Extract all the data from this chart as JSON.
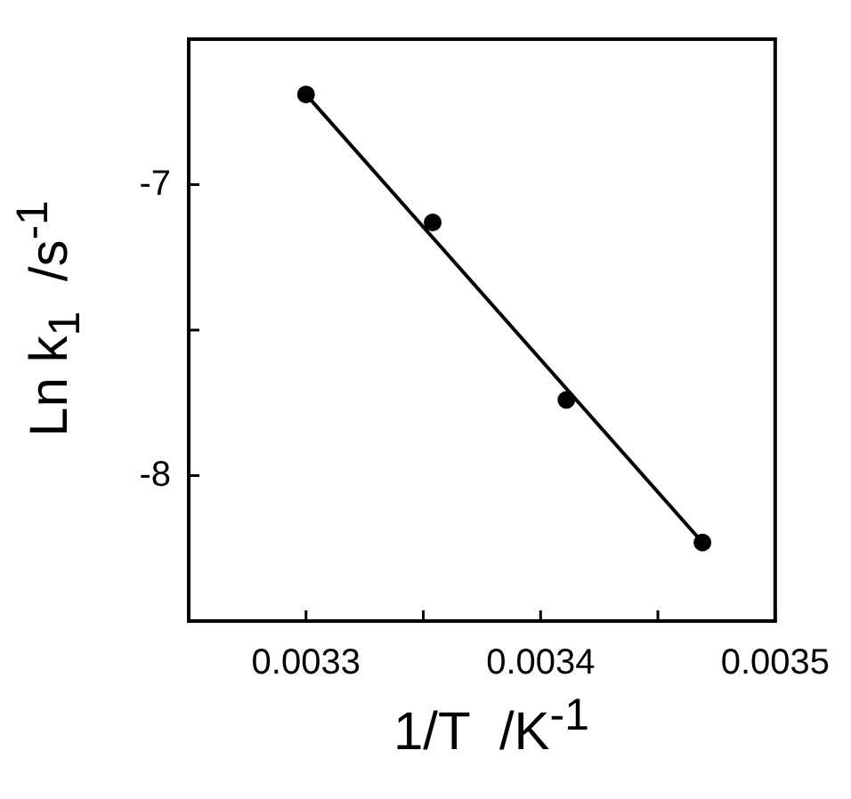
{
  "chart_data": {
    "type": "scatter",
    "xlabel": "1/T  /K$^{-1}$",
    "ylabel": "Ln k$_{1}$  /s$^{-1}$",
    "x": [
      0.0033,
      0.003354,
      0.003411,
      0.003469
    ],
    "series": [
      {
        "color": "#000000",
        "marker": "circle",
        "values": [
          -6.69,
          -7.13,
          -7.74,
          -8.23
        ]
      },
      {
        "type": "line",
        "color": "#000000",
        "marker": "none",
        "line_style": "solid",
        "x": [
          0.0033,
          0.003469
        ],
        "values": [
          -6.69,
          -8.23
        ]
      }
    ],
    "xlim": [
      0.00325,
      0.0035
    ],
    "xticks": [
      0.0033,
      {
        "value": 0.00335,
        "label": null
      },
      0.0034,
      {
        "value": 0.00345,
        "label": null
      },
      0.0035
    ],
    "ylim": [
      -8.5,
      -6.5
    ],
    "yticks": [
      {
        "value": -8.5,
        "label": null
      },
      -8,
      {
        "value": -7.5,
        "label": null
      },
      -7,
      {
        "value": -6.5,
        "label": null
      }
    ],
    "grid": false,
    "legend": false
  }
}
